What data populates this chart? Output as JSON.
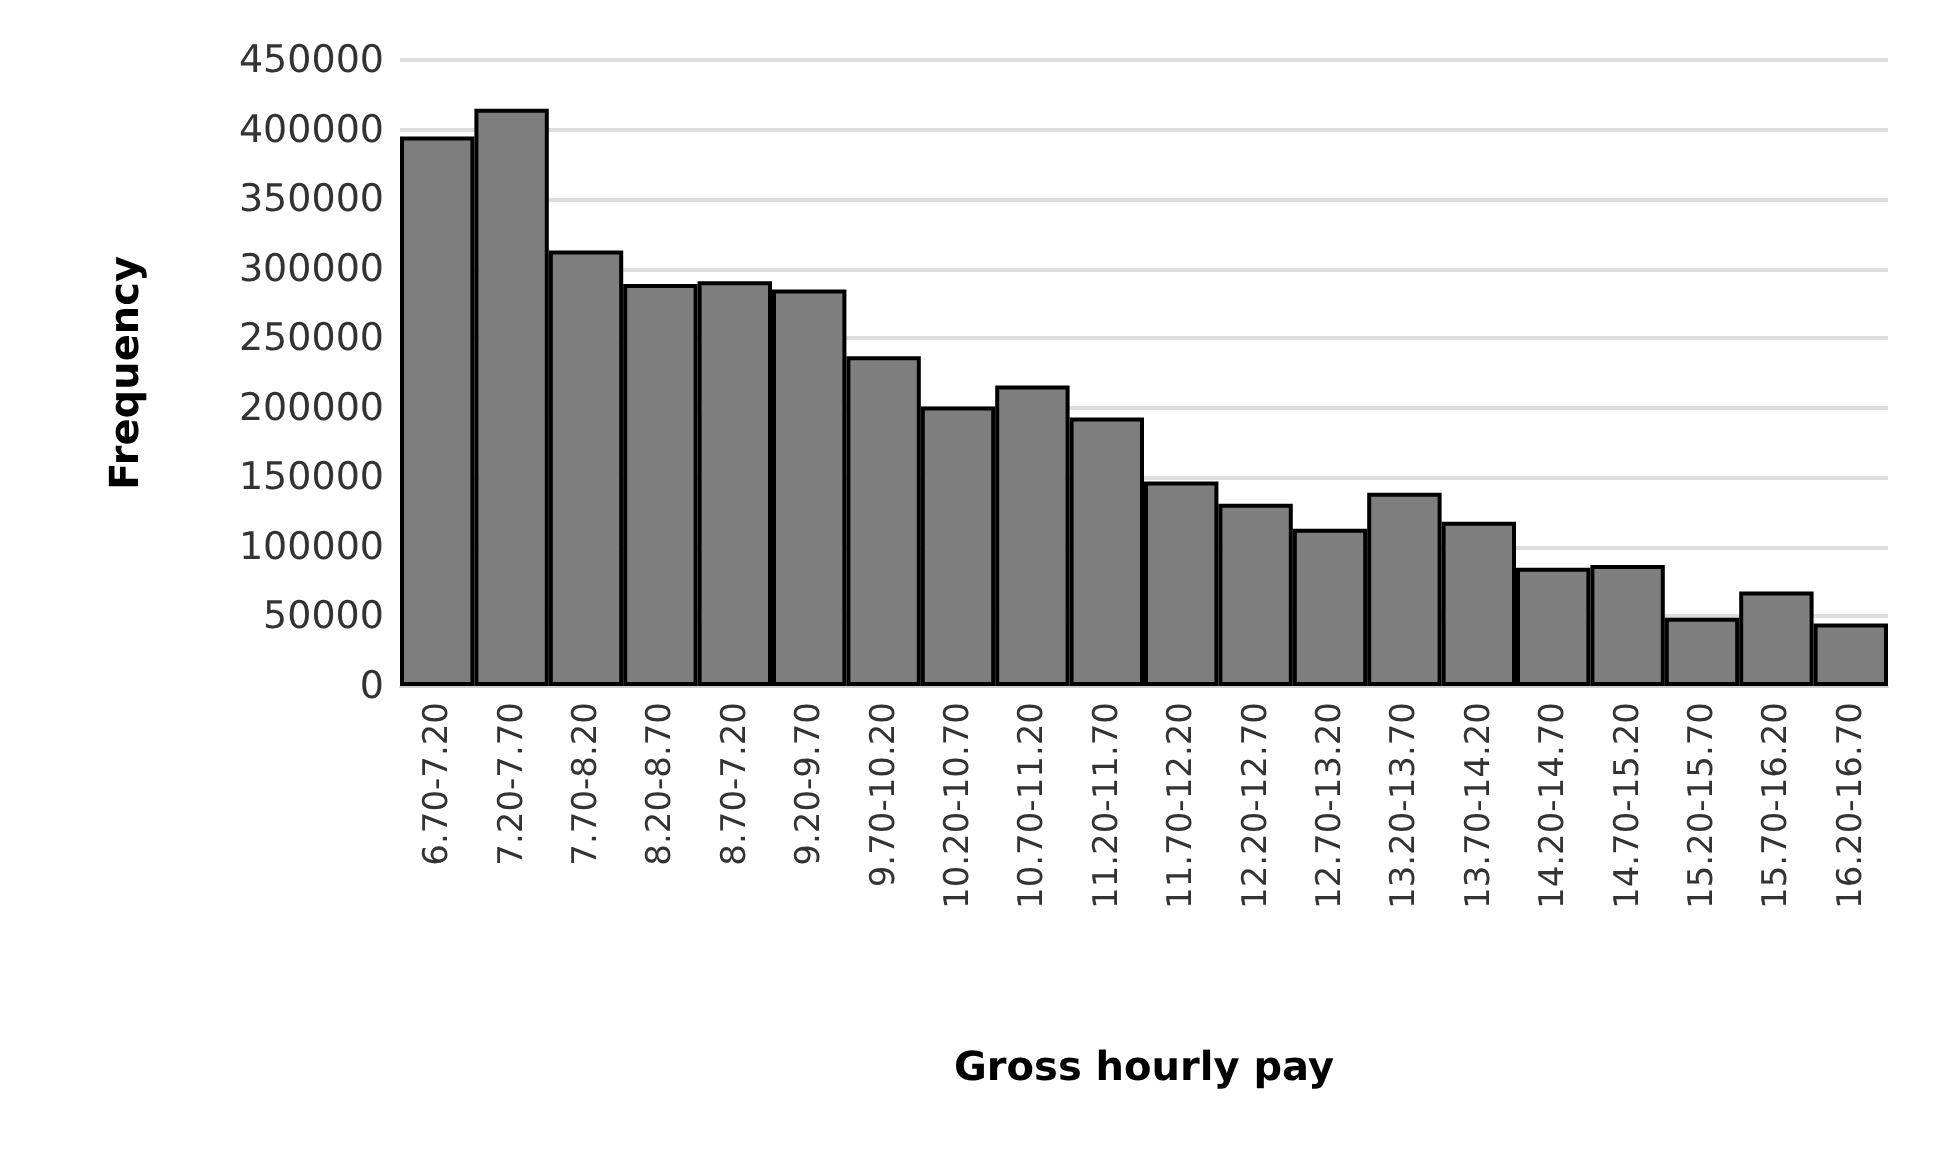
{
  "chart_data": {
    "type": "bar",
    "xlabel": "Gross hourly pay",
    "ylabel": "Frequency",
    "categories": [
      "6.70-7.20",
      "7.20-7.70",
      "7.70-8.20",
      "8.20-8.70",
      "8.70-7.20",
      "9.20-9.70",
      "9.70-10.20",
      "10.20-10.70",
      "10.70-11.20",
      "11.20-11.70",
      "11.70-12.20",
      "12.20-12.70",
      "12.70-13.20",
      "13.20-13.70",
      "13.70-14.20",
      "14.20-14.70",
      "14.70-15.20",
      "15.20-15.70",
      "15.70-16.20",
      "16.20-16.70"
    ],
    "values": [
      395000,
      415000,
      313000,
      289000,
      291000,
      285000,
      237000,
      201000,
      216000,
      193000,
      147000,
      131000,
      113000,
      139000,
      118000,
      85000,
      87000,
      49000,
      68000,
      45000
    ],
    "color": "#7f7f7f",
    "ylim": [
      0,
      450000
    ],
    "yticks": [
      0,
      50000,
      100000,
      150000,
      200000,
      250000,
      300000,
      350000,
      400000,
      450000
    ],
    "grid": "y"
  }
}
